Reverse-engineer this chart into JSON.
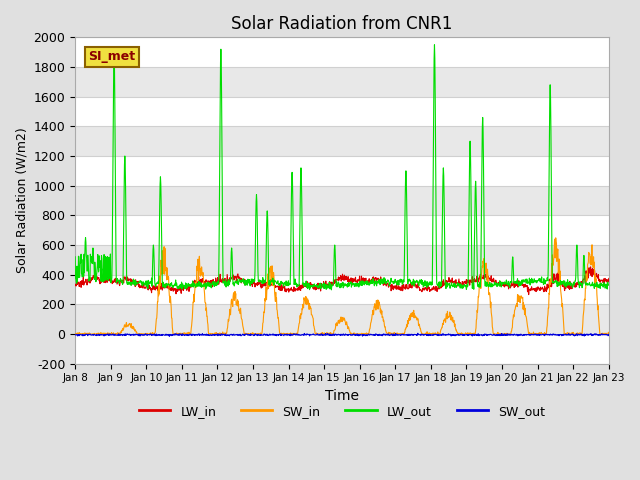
{
  "title": "Solar Radiation from CNR1",
  "xlabel": "Time",
  "ylabel": "Solar Radiation (W/m2)",
  "ylim": [
    -200,
    2000
  ],
  "yticks": [
    -200,
    0,
    200,
    400,
    600,
    800,
    1000,
    1200,
    1400,
    1600,
    1800,
    2000
  ],
  "n_days": 15,
  "n_points": 1440,
  "colors": {
    "LW_in": "#dd0000",
    "SW_in": "#ff9900",
    "LW_out": "#00dd00",
    "SW_out": "#0000dd"
  },
  "legend_labels": [
    "LW_in",
    "SW_in",
    "LW_out",
    "SW_out"
  ],
  "xtick_labels": [
    "Jan 8",
    "Jan 9",
    "Jan 10",
    "Jan 11",
    "Jan 12",
    "Jan 13",
    "Jan 14",
    "Jan 15",
    "Jan 16",
    "Jan 17",
    "Jan 18",
    "Jan 19",
    "Jan 20",
    "Jan 21",
    "Jan 22",
    "Jan 23"
  ],
  "station_label": "SI_met",
  "fig_bg_color": "#e0e0e0",
  "plot_bg_color": "#ffffff",
  "band_colors": [
    "#ffffff",
    "#e8e8e8"
  ],
  "grid_line_color": "#d0d0d0",
  "linewidth": 0.8,
  "title_fontsize": 12
}
